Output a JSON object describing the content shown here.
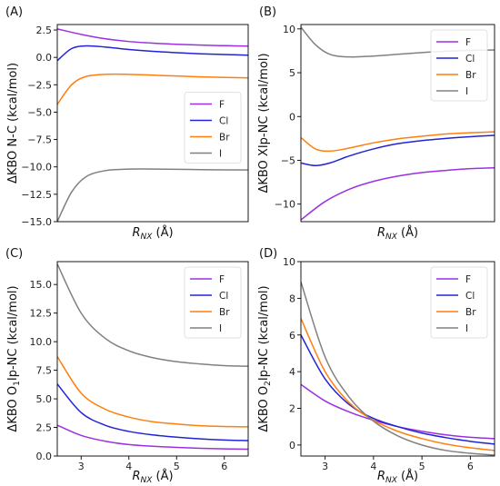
{
  "chart_data": [
    {
      "type": "line",
      "panel_label": "(A)",
      "ylabel": "ΔKBO N-C (kcal/mol)",
      "xlabel_main": "R",
      "xlabel_sub": "NX",
      "xlabel_unit": " (Å)",
      "xlim": [
        2.5,
        6.5
      ],
      "ylim": [
        -15.0,
        3.0
      ],
      "xticks": [],
      "yticks": [
        2.5,
        0.0,
        -2.5,
        -5.0,
        -7.5,
        -10.0,
        -12.5,
        -15.0
      ],
      "ytick_labels": [
        "2.5",
        "0.0",
        "−2.5",
        "−5.0",
        "−7.5",
        "−10.0",
        "−12.5",
        "−15.0"
      ],
      "legend_position": "center-right",
      "series": [
        {
          "name": "F",
          "color": "#9b30e0",
          "x": [
            2.5,
            3.0,
            3.5,
            4.0,
            4.5,
            5.0,
            5.5,
            6.0,
            6.5
          ],
          "y": [
            2.6,
            2.1,
            1.7,
            1.45,
            1.3,
            1.2,
            1.12,
            1.07,
            1.03
          ]
        },
        {
          "name": "Cl",
          "color": "#2323d6",
          "x": [
            2.5,
            2.8,
            3.1,
            3.5,
            4.0,
            4.5,
            5.0,
            5.5,
            6.0,
            6.5
          ],
          "y": [
            -0.3,
            0.8,
            1.05,
            0.95,
            0.72,
            0.55,
            0.43,
            0.33,
            0.26,
            0.2
          ]
        },
        {
          "name": "Br",
          "color": "#ff7f0e",
          "x": [
            2.5,
            2.8,
            3.1,
            3.5,
            4.0,
            4.5,
            5.0,
            5.5,
            6.0,
            6.5
          ],
          "y": [
            -4.3,
            -2.5,
            -1.75,
            -1.55,
            -1.55,
            -1.62,
            -1.7,
            -1.78,
            -1.83,
            -1.87
          ]
        },
        {
          "name": "I",
          "color": "#808080",
          "x": [
            2.5,
            2.8,
            3.1,
            3.5,
            4.0,
            4.5,
            5.0,
            5.5,
            6.0,
            6.5
          ],
          "y": [
            -15.0,
            -12.3,
            -10.9,
            -10.35,
            -10.2,
            -10.2,
            -10.22,
            -10.25,
            -10.27,
            -10.28
          ]
        }
      ]
    },
    {
      "type": "line",
      "panel_label": "(B)",
      "ylabel": "ΔKBO XIp-NC (kcal/mol)",
      "xlabel_main": "R",
      "xlabel_sub": "NX",
      "xlabel_unit": " (Å)",
      "xlim": [
        2.5,
        6.5
      ],
      "ylim": [
        -12.0,
        10.5
      ],
      "xticks": [],
      "yticks": [
        10,
        5,
        0,
        -5,
        -10
      ],
      "ytick_labels": [
        "10",
        "5",
        "0",
        "−5",
        "−10"
      ],
      "legend_position": "top-right",
      "series": [
        {
          "name": "F",
          "color": "#9b30e0",
          "x": [
            2.5,
            3.0,
            3.5,
            4.0,
            4.5,
            5.0,
            5.5,
            6.0,
            6.5
          ],
          "y": [
            -11.8,
            -9.7,
            -8.3,
            -7.4,
            -6.8,
            -6.4,
            -6.15,
            -5.95,
            -5.85
          ]
        },
        {
          "name": "Cl",
          "color": "#2323d6",
          "x": [
            2.5,
            2.8,
            3.1,
            3.5,
            4.0,
            4.5,
            5.0,
            5.5,
            6.0,
            6.5
          ],
          "y": [
            -5.3,
            -5.6,
            -5.3,
            -4.5,
            -3.7,
            -3.1,
            -2.75,
            -2.5,
            -2.3,
            -2.15
          ]
        },
        {
          "name": "Br",
          "color": "#ff7f0e",
          "x": [
            2.5,
            2.8,
            3.1,
            3.5,
            4.0,
            4.5,
            5.0,
            5.5,
            6.0,
            6.5
          ],
          "y": [
            -2.4,
            -3.7,
            -3.95,
            -3.6,
            -3.0,
            -2.55,
            -2.25,
            -2.0,
            -1.85,
            -1.75
          ]
        },
        {
          "name": "I",
          "color": "#808080",
          "x": [
            2.5,
            2.8,
            3.1,
            3.5,
            4.0,
            4.5,
            5.0,
            5.5,
            6.0,
            6.5
          ],
          "y": [
            10.2,
            8.2,
            7.1,
            6.8,
            6.9,
            7.1,
            7.3,
            7.45,
            7.55,
            7.6
          ]
        }
      ]
    },
    {
      "type": "line",
      "panel_label": "(C)",
      "ylabel_pre": "ΔKBO O",
      "ylabel_sub": "1",
      "ylabel_post": "Ip-NC (kcal/mol)",
      "xlabel_main": "R",
      "xlabel_sub": "NX",
      "xlabel_unit": " (Å)",
      "xlim": [
        2.5,
        6.5
      ],
      "ylim": [
        0.0,
        17.0
      ],
      "xticks": [
        3,
        4,
        5,
        6
      ],
      "xtick_labels": [
        "3",
        "4",
        "5",
        "6"
      ],
      "yticks": [
        0.0,
        2.5,
        5.0,
        7.5,
        10.0,
        12.5,
        15.0
      ],
      "ytick_labels": [
        "0.0",
        "2.5",
        "5.0",
        "7.5",
        "10.0",
        "12.5",
        "15.0"
      ],
      "legend_position": "top-right",
      "series": [
        {
          "name": "F",
          "color": "#9b30e0",
          "x": [
            2.5,
            3.0,
            3.5,
            4.0,
            4.5,
            5.0,
            5.5,
            6.0,
            6.5
          ],
          "y": [
            2.7,
            1.8,
            1.3,
            1.0,
            0.85,
            0.75,
            0.68,
            0.63,
            0.6
          ]
        },
        {
          "name": "Cl",
          "color": "#2323d6",
          "x": [
            2.5,
            3.0,
            3.5,
            4.0,
            4.5,
            5.0,
            5.5,
            6.0,
            6.5
          ],
          "y": [
            6.3,
            3.8,
            2.7,
            2.15,
            1.85,
            1.65,
            1.5,
            1.4,
            1.35
          ]
        },
        {
          "name": "Br",
          "color": "#ff7f0e",
          "x": [
            2.5,
            3.0,
            3.5,
            4.0,
            4.5,
            5.0,
            5.5,
            6.0,
            6.5
          ],
          "y": [
            8.7,
            5.5,
            4.1,
            3.4,
            3.0,
            2.8,
            2.65,
            2.58,
            2.55
          ]
        },
        {
          "name": "I",
          "color": "#808080",
          "x": [
            2.5,
            3.0,
            3.5,
            4.0,
            4.5,
            5.0,
            5.5,
            6.0,
            6.5
          ],
          "y": [
            16.8,
            12.5,
            10.3,
            9.2,
            8.6,
            8.25,
            8.05,
            7.9,
            7.85
          ]
        }
      ]
    },
    {
      "type": "line",
      "panel_label": "(D)",
      "ylabel_pre": "ΔKBO O",
      "ylabel_sub": "2",
      "ylabel_post": "Ip-NC (kcal/mol)",
      "xlabel_main": "R",
      "xlabel_sub": "NX",
      "xlabel_unit": " (Å)",
      "xlim": [
        2.5,
        6.5
      ],
      "ylim": [
        -0.6,
        10.0
      ],
      "xticks": [
        3,
        4,
        5,
        6
      ],
      "xtick_labels": [
        "3",
        "4",
        "5",
        "6"
      ],
      "yticks": [
        0,
        2,
        4,
        6,
        8,
        10
      ],
      "ytick_labels": [
        "0",
        "2",
        "4",
        "6",
        "8",
        "10"
      ],
      "legend_position": "top-right",
      "series": [
        {
          "name": "F",
          "color": "#9b30e0",
          "x": [
            2.5,
            3.0,
            3.5,
            4.0,
            4.5,
            5.0,
            5.5,
            6.0,
            6.5
          ],
          "y": [
            3.3,
            2.4,
            1.8,
            1.35,
            1.0,
            0.75,
            0.55,
            0.42,
            0.35
          ]
        },
        {
          "name": "Cl",
          "color": "#2323d6",
          "x": [
            2.5,
            3.0,
            3.5,
            4.0,
            4.5,
            5.0,
            5.5,
            6.0,
            6.5
          ],
          "y": [
            6.0,
            3.6,
            2.2,
            1.45,
            1.0,
            0.65,
            0.4,
            0.2,
            0.05
          ]
        },
        {
          "name": "Br",
          "color": "#ff7f0e",
          "x": [
            2.5,
            3.0,
            3.5,
            4.0,
            4.5,
            5.0,
            5.5,
            6.0,
            6.5
          ],
          "y": [
            6.9,
            4.0,
            2.3,
            1.35,
            0.75,
            0.35,
            0.05,
            -0.15,
            -0.3
          ]
        },
        {
          "name": "I",
          "color": "#808080",
          "x": [
            2.5,
            3.0,
            3.5,
            4.0,
            4.5,
            5.0,
            5.5,
            6.0,
            6.5
          ],
          "y": [
            8.9,
            4.8,
            2.6,
            1.3,
            0.5,
            0.0,
            -0.3,
            -0.45,
            -0.55
          ]
        }
      ]
    }
  ]
}
